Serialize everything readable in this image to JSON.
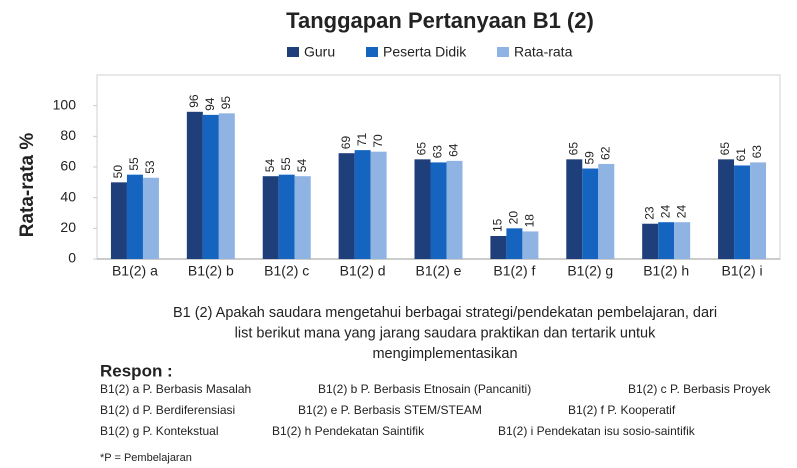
{
  "chart_data": {
    "type": "bar",
    "title": "Tanggapan Pertanyaan B1 (2)",
    "y_label": "Rata-rata %",
    "categories": [
      "B1(2) a",
      "B1(2) b",
      "B1(2) c",
      "B1(2) d",
      "B1(2) e",
      "B1(2) f",
      "B1(2) g",
      "B1(2) h",
      "B1(2) i"
    ],
    "series": [
      {
        "name": "Guru",
        "color": "#1f3f7a",
        "values": [
          50,
          96,
          54,
          69,
          65,
          15,
          65,
          23,
          65
        ]
      },
      {
        "name": "Peserta Didik",
        "color": "#1565c0",
        "values": [
          55,
          94,
          55,
          71,
          63,
          20,
          59,
          24,
          61
        ]
      },
      {
        "name": "Rata-rata",
        "color": "#8fb4e3",
        "values": [
          53,
          95,
          54,
          70,
          64,
          18,
          62,
          24,
          63
        ]
      }
    ],
    "ylim": [
      0,
      120
    ],
    "yticks": [
      0,
      20,
      40,
      60,
      80,
      100
    ],
    "grid": false,
    "legend": "top",
    "caption": [
      "B1 (2) Apakah saudara mengetahui berbagai strategi/pendekatan pembelajaran, dari",
      "list berikut mana yang jarang saudara praktikan dan tertarik untuk",
      "mengimplementasikan"
    ],
    "notes_title": "Respon :",
    "notes": [
      [
        "B1(2) a P. Berbasis Masalah",
        "B1(2) b  P. Berbasis Etnosain (Pancaniti)",
        "B1(2) c P. Berbasis Proyek"
      ],
      [
        "B1(2) d P. Berdiferensiasi",
        "B1(2) e P. Berbasis STEM/STEAM",
        "B1(2) f P. Kooperatif"
      ],
      [
        "B1(2) g P. Kontekstual",
        "B1(2) h Pendekatan Saintifik",
        "B1(2) i Pendekatan isu sosio-saintifik"
      ]
    ],
    "footnote": "*P = Pembelajaran"
  }
}
